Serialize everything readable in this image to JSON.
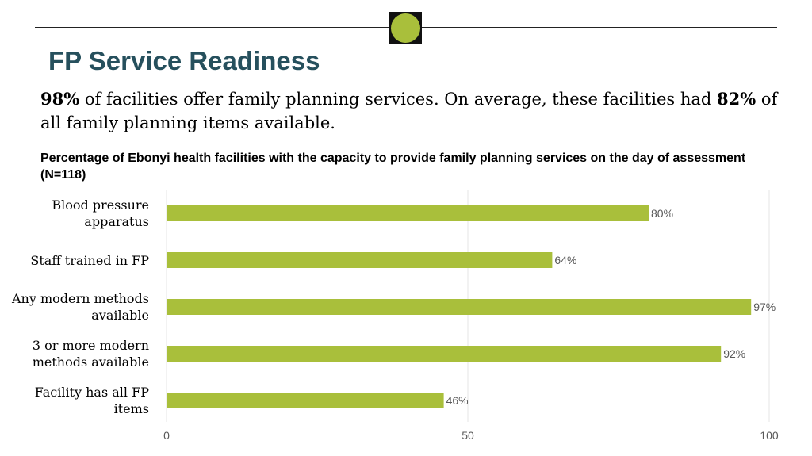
{
  "slide": {
    "title": "FP Service Readiness",
    "summary": {
      "value1": "98%",
      "text1": " of facilities offer family planning services. On average, these facilities had ",
      "value2": "82%",
      "text2": " of all family planning items available."
    }
  },
  "colors": {
    "accent": "#a9bf3b",
    "title": "#26505d"
  },
  "chart_data": {
    "type": "bar",
    "orientation": "horizontal",
    "title": "Percentage of Ebonyi health facilities with the capacity to provide family planning services on the day of assessment (N=118)",
    "categories": [
      "Blood pressure apparatus",
      "Staff trained in FP",
      "Any modern methods available",
      "3 or more modern methods available",
      "Facility has all FP items"
    ],
    "values": [
      80,
      64,
      97,
      92,
      46
    ],
    "data_labels": [
      "80%",
      "64%",
      "97%",
      "92%",
      "46%"
    ],
    "xlim": [
      0,
      100
    ],
    "xticks": [
      0,
      50,
      100
    ],
    "grid": true,
    "legend": "none",
    "bar_color": "#a9bf3b"
  }
}
